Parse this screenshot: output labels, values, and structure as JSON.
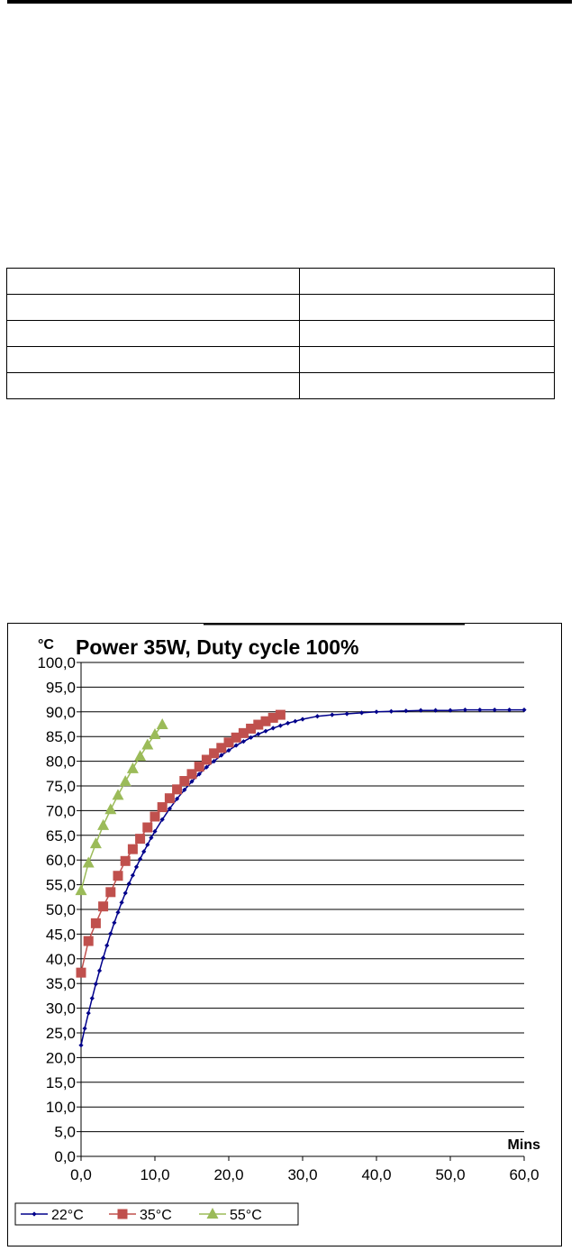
{
  "spec_table": {
    "rows": [
      [
        "",
        ""
      ],
      [
        "",
        ""
      ],
      [
        "",
        ""
      ],
      [
        "",
        ""
      ],
      [
        "",
        ""
      ]
    ]
  },
  "chart_data": {
    "type": "line",
    "title": "Power 35W, Duty cycle 100%",
    "xlabel": "Mins",
    "ylabel": "°C",
    "xlim": [
      0,
      60
    ],
    "ylim": [
      0,
      100
    ],
    "x_ticks": [
      "0,0",
      "10,0",
      "20,0",
      "30,0",
      "40,0",
      "50,0",
      "60,0"
    ],
    "y_ticks": [
      "0,0",
      "5,0",
      "10,0",
      "15,0",
      "20,0",
      "25,0",
      "30,0",
      "35,0",
      "40,0",
      "45,0",
      "50,0",
      "55,0",
      "60,0",
      "65,0",
      "70,0",
      "75,0",
      "80,0",
      "85,0",
      "90,0",
      "95,0",
      "100,0"
    ],
    "grid": true,
    "legend_position": "bottom-left",
    "series": [
      {
        "name": "22°C",
        "color": "#00008b",
        "marker": "diamond",
        "points": [
          [
            0,
            22.5
          ],
          [
            0.5,
            25.9
          ],
          [
            1,
            29.0
          ],
          [
            1.5,
            32.0
          ],
          [
            2,
            34.9
          ],
          [
            2.5,
            37.6
          ],
          [
            3,
            40.2
          ],
          [
            3.5,
            42.7
          ],
          [
            4,
            45.1
          ],
          [
            4.5,
            47.3
          ],
          [
            5,
            49.4
          ],
          [
            5.5,
            51.4
          ],
          [
            6,
            53.3
          ],
          [
            6.5,
            55.2
          ],
          [
            7,
            56.9
          ],
          [
            7.5,
            58.6
          ],
          [
            8,
            60.2
          ],
          [
            8.5,
            61.7
          ],
          [
            9,
            63.1
          ],
          [
            9.5,
            64.5
          ],
          [
            10,
            65.8
          ],
          [
            11,
            68.2
          ],
          [
            12,
            70.4
          ],
          [
            13,
            72.4
          ],
          [
            14,
            74.2
          ],
          [
            15,
            75.9
          ],
          [
            16,
            77.4
          ],
          [
            17,
            78.8
          ],
          [
            18,
            80.0
          ],
          [
            19,
            81.2
          ],
          [
            20,
            82.2
          ],
          [
            21,
            83.2
          ],
          [
            22,
            84.0
          ],
          [
            23,
            84.8
          ],
          [
            24,
            85.5
          ],
          [
            25,
            86.1
          ],
          [
            26,
            86.7
          ],
          [
            27,
            87.2
          ],
          [
            28,
            87.7
          ],
          [
            29,
            88.1
          ],
          [
            30,
            88.5
          ],
          [
            32,
            89.1
          ],
          [
            34,
            89.4
          ],
          [
            36,
            89.6
          ],
          [
            38,
            89.8
          ],
          [
            40,
            90.0
          ],
          [
            42,
            90.1
          ],
          [
            44,
            90.2
          ],
          [
            46,
            90.3
          ],
          [
            48,
            90.3
          ],
          [
            50,
            90.3
          ],
          [
            52,
            90.4
          ],
          [
            54,
            90.4
          ],
          [
            56,
            90.4
          ],
          [
            58,
            90.4
          ],
          [
            60,
            90.4
          ]
        ]
      },
      {
        "name": "35°C",
        "color": "#c0504d",
        "marker": "square",
        "points": [
          [
            0,
            37.2
          ],
          [
            1,
            43.6
          ],
          [
            2,
            47.2
          ],
          [
            3,
            50.6
          ],
          [
            4,
            53.5
          ],
          [
            5,
            56.8
          ],
          [
            6,
            59.8
          ],
          [
            7,
            62.2
          ],
          [
            8,
            64.3
          ],
          [
            9,
            66.6
          ],
          [
            10,
            68.8
          ],
          [
            11,
            70.7
          ],
          [
            12,
            72.5
          ],
          [
            13,
            74.3
          ],
          [
            14,
            76.0
          ],
          [
            15,
            77.4
          ],
          [
            16,
            78.9
          ],
          [
            17,
            80.3
          ],
          [
            18,
            81.6
          ],
          [
            19,
            82.7
          ],
          [
            20,
            83.8
          ],
          [
            21,
            84.8
          ],
          [
            22,
            85.7
          ],
          [
            23,
            86.6
          ],
          [
            24,
            87.4
          ],
          [
            25,
            88.1
          ],
          [
            26,
            88.8
          ],
          [
            27,
            89.4
          ]
        ]
      },
      {
        "name": "55°C",
        "color": "#9bbb59",
        "marker": "triangle",
        "points": [
          [
            0,
            53.8
          ],
          [
            1,
            59.4
          ],
          [
            2,
            63.3
          ],
          [
            3,
            67.0
          ],
          [
            4,
            70.2
          ],
          [
            5,
            73.1
          ],
          [
            6,
            75.9
          ],
          [
            7,
            78.5
          ],
          [
            8,
            81.0
          ],
          [
            9,
            83.3
          ],
          [
            10,
            85.4
          ],
          [
            11,
            87.4
          ]
        ]
      }
    ]
  }
}
